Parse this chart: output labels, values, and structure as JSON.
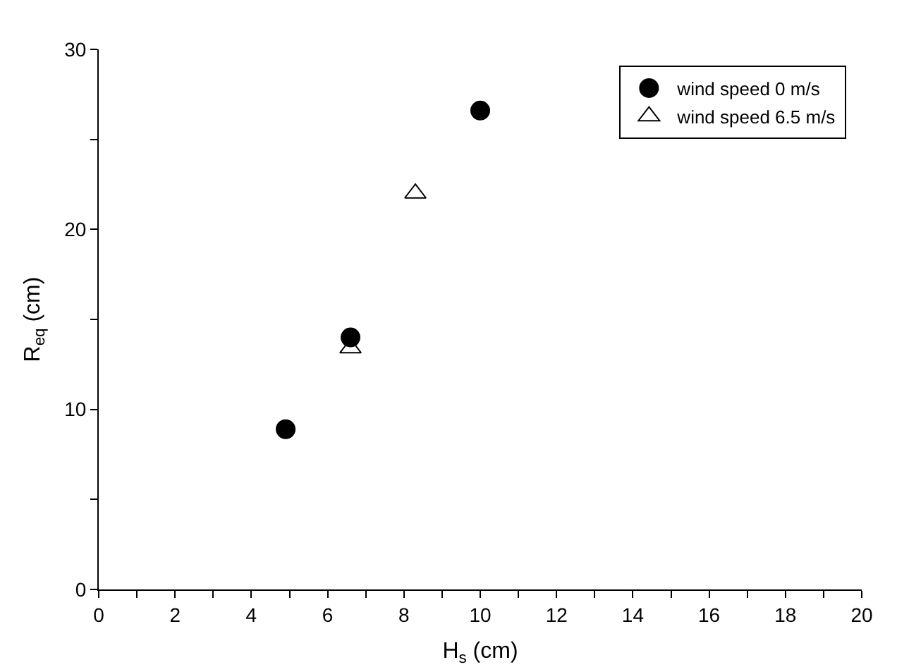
{
  "chart_data": {
    "type": "scatter",
    "xlabel": "H$_{s}$ (cm)",
    "ylabel": "R$_{eq}$ (cm)",
    "xlim": [
      0,
      20
    ],
    "ylim": [
      0,
      30
    ],
    "xticks": [
      0,
      {
        "value": 1,
        "label": null
      },
      2,
      {
        "value": 3,
        "label": null
      },
      4,
      {
        "value": 5,
        "label": null
      },
      6,
      {
        "value": 7,
        "label": null
      },
      8,
      {
        "value": 9,
        "label": null
      },
      10,
      {
        "value": 11,
        "label": null
      },
      12,
      {
        "value": 13,
        "label": null
      },
      14,
      {
        "value": 15,
        "label": null
      },
      16,
      {
        "value": 17,
        "label": null
      },
      18,
      {
        "value": 19,
        "label": null
      },
      20
    ],
    "yticks": [
      0,
      {
        "value": 5,
        "label": null
      },
      10,
      {
        "value": 15,
        "label": null
      },
      20,
      {
        "value": 25,
        "label": null
      },
      30
    ],
    "grid": false,
    "legend": "top right",
    "series": [
      {
        "name": "wind speed 0 m/s",
        "color": "#000000",
        "marker": "circle",
        "x": [
          4.9,
          6.6,
          10.0
        ],
        "values": [
          8.9,
          14.0,
          26.6
        ]
      },
      {
        "name": "wind speed 6.5 m/s",
        "color": "#000000",
        "marker": "triangle",
        "x": [
          6.6,
          8.3
        ],
        "values": [
          13.4,
          22.0
        ]
      }
    ]
  }
}
